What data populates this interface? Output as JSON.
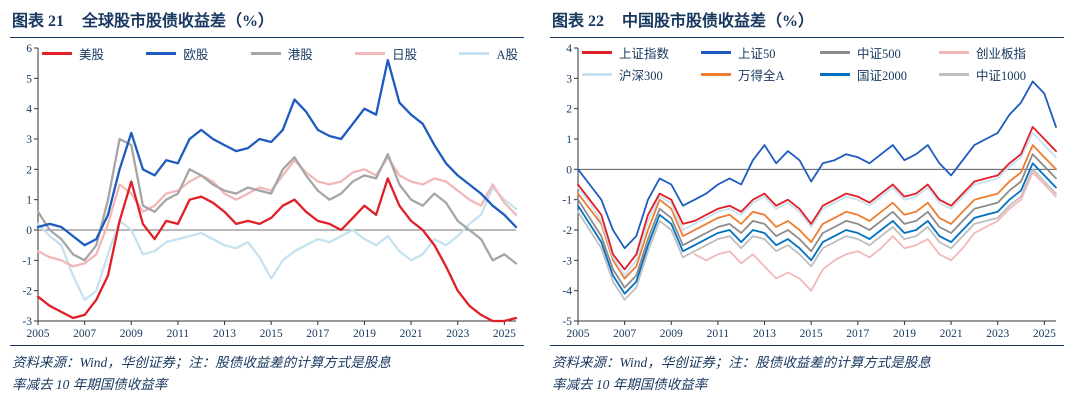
{
  "colors": {
    "accent_navy": "#17375E",
    "axis": "#333333"
  },
  "figures": [
    {
      "label": "图表 21",
      "title": "全球股市股债收益差（%）",
      "note_line1": "资料来源：Wind，华创证券；注：股债收益差的计算方式是股息",
      "note_line2": "率减去 10 年期国债收益率"
    },
    {
      "label": "图表 22",
      "title": "中国股市股债收益差（%）",
      "note_line1": "资料来源：Wind，华创证券；注：股债收益差的计算方式是股息",
      "note_line2": "率减去 10 年期国债收益率"
    }
  ],
  "chart_data": [
    {
      "type": "line",
      "title": "全球股市股债收益差（%）",
      "xlabel": "",
      "ylabel": "",
      "ylim": [
        -3,
        6
      ],
      "yticks": [
        6,
        5,
        4,
        3,
        2,
        1,
        0,
        -1,
        -2,
        -3
      ],
      "xticks": [
        2005,
        2007,
        2009,
        2011,
        2013,
        2015,
        2017,
        2019,
        2021,
        2023,
        2025
      ],
      "grid": false,
      "legend_position": "top-inside",
      "legend_rows": 1,
      "line_width": 2.3,
      "x": [
        2005,
        2005.5,
        2006,
        2006.5,
        2007,
        2007.5,
        2008,
        2008.5,
        2009,
        2009.5,
        2010,
        2010.5,
        2011,
        2011.5,
        2012,
        2012.5,
        2013,
        2013.5,
        2014,
        2014.5,
        2015,
        2015.5,
        2016,
        2016.5,
        2017,
        2017.5,
        2018,
        2018.5,
        2019,
        2019.5,
        2020,
        2020.5,
        2021,
        2021.5,
        2022,
        2022.5,
        2023,
        2023.5,
        2024,
        2024.5,
        2025,
        2025.5
      ],
      "series": [
        {
          "name": "美股",
          "color": "#e01f26",
          "values": [
            -2.2,
            -2.5,
            -2.7,
            -2.9,
            -2.8,
            -2.3,
            -1.5,
            0.3,
            1.6,
            0.2,
            -0.3,
            0.3,
            0.2,
            1.0,
            1.1,
            0.9,
            0.6,
            0.2,
            0.3,
            0.2,
            0.4,
            0.8,
            1.0,
            0.6,
            0.3,
            0.2,
            0.0,
            0.4,
            0.8,
            0.5,
            1.7,
            0.8,
            0.3,
            0.0,
            -0.5,
            -1.2,
            -2.0,
            -2.5,
            -2.8,
            -3.0,
            -3.0,
            -2.9
          ]
        },
        {
          "name": "欧股",
          "color": "#1e5bc0",
          "values": [
            0.1,
            0.2,
            0.1,
            -0.2,
            -0.5,
            -0.3,
            0.5,
            2.0,
            3.2,
            2.0,
            1.8,
            2.3,
            2.2,
            3.0,
            3.3,
            3.0,
            2.8,
            2.6,
            2.7,
            3.0,
            2.9,
            3.3,
            4.3,
            3.9,
            3.3,
            3.1,
            3.0,
            3.5,
            4.0,
            3.8,
            5.6,
            4.2,
            3.8,
            3.5,
            2.8,
            2.2,
            1.8,
            1.5,
            1.2,
            0.8,
            0.5,
            0.1
          ]
        },
        {
          "name": "港股",
          "color": "#a6a6a6",
          "values": [
            0.6,
            0.0,
            -0.3,
            -0.8,
            -1.0,
            -0.5,
            1.0,
            3.0,
            2.8,
            0.8,
            0.6,
            1.0,
            1.2,
            2.0,
            1.8,
            1.5,
            1.3,
            1.2,
            1.4,
            1.3,
            1.2,
            2.0,
            2.4,
            1.8,
            1.3,
            1.0,
            1.2,
            1.6,
            1.8,
            1.7,
            2.5,
            1.5,
            1.0,
            0.8,
            1.2,
            0.9,
            0.3,
            0.0,
            -0.3,
            -1.0,
            -0.8,
            -1.1
          ]
        },
        {
          "name": "日股",
          "color": "#f2b8b8",
          "values": [
            -0.7,
            -0.9,
            -1.0,
            -1.2,
            -1.1,
            -0.8,
            0.2,
            1.5,
            1.2,
            0.6,
            0.8,
            1.2,
            1.3,
            1.6,
            1.8,
            1.6,
            1.2,
            1.0,
            1.2,
            1.4,
            1.3,
            1.8,
            2.3,
            1.9,
            1.6,
            1.5,
            1.6,
            1.9,
            2.0,
            1.8,
            2.4,
            1.8,
            1.6,
            1.5,
            1.7,
            1.6,
            1.3,
            1.0,
            0.8,
            1.5,
            0.9,
            0.5
          ]
        },
        {
          "name": "A股",
          "color": "#c6e2f0",
          "values": [
            0.2,
            -0.2,
            -0.5,
            -1.5,
            -2.3,
            -2.0,
            -0.8,
            0.3,
            0.0,
            -0.8,
            -0.7,
            -0.4,
            -0.3,
            -0.2,
            -0.1,
            -0.3,
            -0.5,
            -0.6,
            -0.4,
            -0.9,
            -1.6,
            -1.0,
            -0.7,
            -0.5,
            -0.3,
            -0.4,
            -0.2,
            0.0,
            -0.3,
            -0.5,
            -0.2,
            -0.7,
            -1.0,
            -0.8,
            -0.3,
            -0.5,
            -0.2,
            0.2,
            0.5,
            1.4,
            1.0,
            0.7
          ]
        }
      ]
    },
    {
      "type": "line",
      "title": "中国股市股债收益差（%）",
      "xlabel": "",
      "ylabel": "",
      "ylim": [
        -5,
        4
      ],
      "yticks": [
        4,
        3,
        2,
        1,
        0,
        -1,
        -2,
        -3,
        -4,
        -5
      ],
      "xticks": [
        2005,
        2007,
        2009,
        2011,
        2013,
        2015,
        2017,
        2019,
        2021,
        2023,
        2025
      ],
      "grid": false,
      "legend_position": "top-inside",
      "legend_rows": 2,
      "line_width": 1.8,
      "x": [
        2005,
        2005.5,
        2006,
        2006.5,
        2007,
        2007.5,
        2008,
        2008.5,
        2009,
        2009.5,
        2010,
        2010.5,
        2011,
        2011.5,
        2012,
        2012.5,
        2013,
        2013.5,
        2014,
        2014.5,
        2015,
        2015.5,
        2016,
        2016.5,
        2017,
        2017.5,
        2018,
        2018.5,
        2019,
        2019.5,
        2020,
        2020.5,
        2021,
        2021.5,
        2022,
        2022.5,
        2023,
        2023.5,
        2024,
        2024.5,
        2025,
        2025.5
      ],
      "series": [
        {
          "name": "上证指数",
          "color": "#e01f26",
          "values": [
            -0.5,
            -1.0,
            -1.5,
            -2.8,
            -3.3,
            -2.8,
            -1.5,
            -0.8,
            -1.0,
            -1.8,
            -1.7,
            -1.5,
            -1.3,
            -1.2,
            -1.4,
            -1.0,
            -0.8,
            -1.2,
            -1.0,
            -1.3,
            -1.8,
            -1.2,
            -1.0,
            -0.8,
            -0.9,
            -1.1,
            -0.8,
            -0.5,
            -0.9,
            -0.8,
            -0.5,
            -1.0,
            -1.2,
            -0.8,
            -0.4,
            -0.3,
            -0.2,
            0.2,
            0.5,
            1.4,
            1.0,
            0.6
          ]
        },
        {
          "name": "上证50",
          "color": "#1e5bc0",
          "values": [
            0.0,
            -0.5,
            -1.0,
            -2.0,
            -2.6,
            -2.2,
            -1.0,
            -0.3,
            -0.5,
            -1.2,
            -1.0,
            -0.8,
            -0.5,
            -0.3,
            -0.5,
            0.3,
            0.8,
            0.2,
            0.6,
            0.3,
            -0.4,
            0.2,
            0.3,
            0.5,
            0.4,
            0.2,
            0.5,
            0.8,
            0.3,
            0.5,
            0.8,
            0.2,
            -0.2,
            0.3,
            0.8,
            1.0,
            1.2,
            1.8,
            2.2,
            2.9,
            2.5,
            1.4
          ]
        },
        {
          "name": "中证500",
          "color": "#8c8c8c",
          "values": [
            -1.0,
            -1.6,
            -2.2,
            -3.3,
            -3.9,
            -3.5,
            -2.3,
            -1.3,
            -1.6,
            -2.5,
            -2.3,
            -2.1,
            -1.9,
            -1.8,
            -2.1,
            -1.7,
            -1.8,
            -2.2,
            -2.0,
            -2.3,
            -2.7,
            -2.1,
            -1.9,
            -1.7,
            -1.8,
            -2.0,
            -1.7,
            -1.4,
            -1.8,
            -1.7,
            -1.4,
            -1.9,
            -2.1,
            -1.7,
            -1.3,
            -1.2,
            -1.1,
            -0.7,
            -0.4,
            0.5,
            0.1,
            -0.3
          ]
        },
        {
          "name": "创业板指",
          "color": "#f2b8b8",
          "values": [
            null,
            null,
            null,
            null,
            null,
            null,
            null,
            null,
            null,
            null,
            -2.8,
            -3.0,
            -2.8,
            -2.7,
            -3.1,
            -2.8,
            -3.2,
            -3.6,
            -3.4,
            -3.6,
            -4.0,
            -3.3,
            -3.0,
            -2.8,
            -2.7,
            -2.9,
            -2.6,
            -2.2,
            -2.6,
            -2.5,
            -2.3,
            -2.8,
            -3.0,
            -2.6,
            -2.1,
            -1.9,
            -1.7,
            -1.3,
            -1.0,
            -0.1,
            -0.5,
            -0.9
          ]
        },
        {
          "name": "沪深300",
          "color": "#c6e2f0",
          "values": [
            -0.6,
            -1.1,
            -1.7,
            -2.9,
            -3.5,
            -3.0,
            -1.7,
            -0.9,
            -1.1,
            -2.0,
            -1.8,
            -1.6,
            -1.4,
            -1.3,
            -1.5,
            -1.1,
            -0.9,
            -1.3,
            -1.1,
            -1.4,
            -1.9,
            -1.3,
            -1.1,
            -0.9,
            -1.0,
            -1.2,
            -0.9,
            -0.6,
            -1.0,
            -0.9,
            -0.6,
            -1.1,
            -1.3,
            -0.9,
            -0.5,
            -0.4,
            -0.3,
            0.1,
            0.4,
            1.2,
            0.8,
            0.4
          ]
        },
        {
          "name": "万得全A",
          "color": "#ed7d31",
          "values": [
            -0.8,
            -1.3,
            -1.8,
            -3.0,
            -3.6,
            -3.2,
            -2.0,
            -1.0,
            -1.3,
            -2.2,
            -2.0,
            -1.8,
            -1.6,
            -1.5,
            -1.8,
            -1.4,
            -1.5,
            -1.9,
            -1.7,
            -2.0,
            -2.4,
            -1.8,
            -1.6,
            -1.4,
            -1.5,
            -1.7,
            -1.4,
            -1.1,
            -1.5,
            -1.4,
            -1.1,
            -1.6,
            -1.8,
            -1.4,
            -1.0,
            -0.9,
            -0.8,
            -0.4,
            -0.1,
            0.8,
            0.4,
            0.0
          ]
        },
        {
          "name": "国证2000",
          "color": "#0070c0",
          "values": [
            -1.2,
            -1.8,
            -2.4,
            -3.5,
            -4.1,
            -3.7,
            -2.5,
            -1.5,
            -1.8,
            -2.7,
            -2.5,
            -2.3,
            -2.1,
            -2.0,
            -2.4,
            -2.0,
            -2.1,
            -2.5,
            -2.3,
            -2.6,
            -3.0,
            -2.4,
            -2.2,
            -2.0,
            -2.1,
            -2.3,
            -2.0,
            -1.7,
            -2.1,
            -2.0,
            -1.7,
            -2.2,
            -2.4,
            -2.0,
            -1.6,
            -1.5,
            -1.4,
            -1.0,
            -0.7,
            0.2,
            -0.2,
            -0.6
          ]
        },
        {
          "name": "中证1000",
          "color": "#bfbfbf",
          "values": [
            -1.4,
            -2.0,
            -2.6,
            -3.7,
            -4.3,
            -3.9,
            -2.7,
            -1.7,
            -2.0,
            -2.9,
            -2.7,
            -2.5,
            -2.3,
            -2.2,
            -2.6,
            -2.2,
            -2.3,
            -2.7,
            -2.5,
            -2.8,
            -3.2,
            -2.6,
            -2.4,
            -2.2,
            -2.3,
            -2.5,
            -2.2,
            -1.9,
            -2.3,
            -2.2,
            -1.9,
            -2.4,
            -2.6,
            -2.2,
            -1.8,
            -1.7,
            -1.6,
            -1.2,
            -0.9,
            0.0,
            -0.4,
            -0.8
          ]
        }
      ]
    }
  ]
}
